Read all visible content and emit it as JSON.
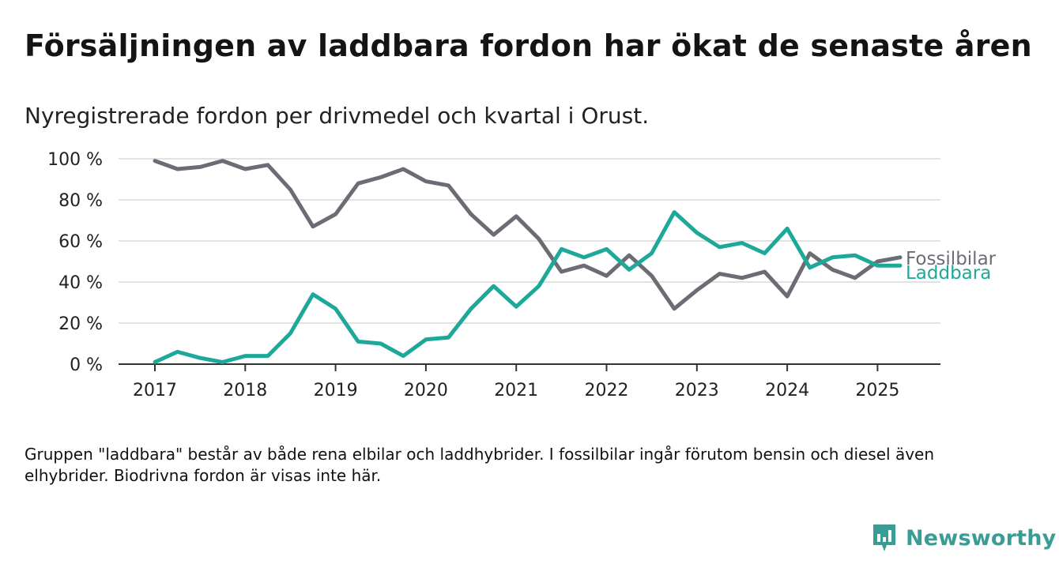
{
  "title": "Försäljningen av laddbara fordon har ökat de senaste åren",
  "subtitle": "Nyregistrerade fordon per drivmedel och kvartal i Orust.",
  "note": "Gruppen \"laddbara\" består av både rena elbilar och laddhybrider. I fossilbilar ingår förutom bensin och diesel även elhybrider. Biodrivna fordon är visas inte här.",
  "brand": {
    "name": "Newsworthy",
    "color": "#3a9d95",
    "icon": "newsworthy-logo-icon"
  },
  "chart_data": {
    "type": "line",
    "x": [
      "2017 Q1",
      "2017 Q2",
      "2017 Q3",
      "2017 Q4",
      "2018 Q1",
      "2018 Q2",
      "2018 Q3",
      "2018 Q4",
      "2019 Q1",
      "2019 Q2",
      "2019 Q3",
      "2019 Q4",
      "2020 Q1",
      "2020 Q2",
      "2020 Q3",
      "2020 Q4",
      "2021 Q1",
      "2021 Q2",
      "2021 Q3",
      "2021 Q4",
      "2022 Q1",
      "2022 Q2",
      "2022 Q3",
      "2022 Q4",
      "2023 Q1",
      "2023 Q2",
      "2023 Q3",
      "2023 Q4",
      "2024 Q1",
      "2024 Q2",
      "2024 Q3",
      "2024 Q4",
      "2025 Q1",
      "2025 Q2"
    ],
    "xticks": [
      "2017",
      "2018",
      "2019",
      "2020",
      "2021",
      "2022",
      "2023",
      "2024",
      "2025"
    ],
    "yticks": [
      "0 %",
      "20 %",
      "40 %",
      "60 %",
      "80 %",
      "100 %"
    ],
    "ylim": [
      0,
      100
    ],
    "grid": true,
    "series": [
      {
        "name": "Fossilbilar",
        "color": "#6d6b73",
        "values": [
          99,
          95,
          96,
          99,
          95,
          97,
          85,
          67,
          73,
          88,
          91,
          95,
          89,
          87,
          73,
          63,
          72,
          61,
          45,
          48,
          43,
          53,
          43,
          27,
          36,
          44,
          42,
          45,
          33,
          54,
          46,
          42,
          50,
          52
        ]
      },
      {
        "name": "Laddbara",
        "color": "#1ea89a",
        "values": [
          1,
          6,
          3,
          1,
          4,
          4,
          15,
          34,
          27,
          11,
          10,
          4,
          12,
          13,
          27,
          38,
          28,
          38,
          56,
          52,
          56,
          46,
          54,
          74,
          64,
          57,
          59,
          54,
          66,
          47,
          52,
          53,
          48,
          48
        ]
      }
    ]
  }
}
